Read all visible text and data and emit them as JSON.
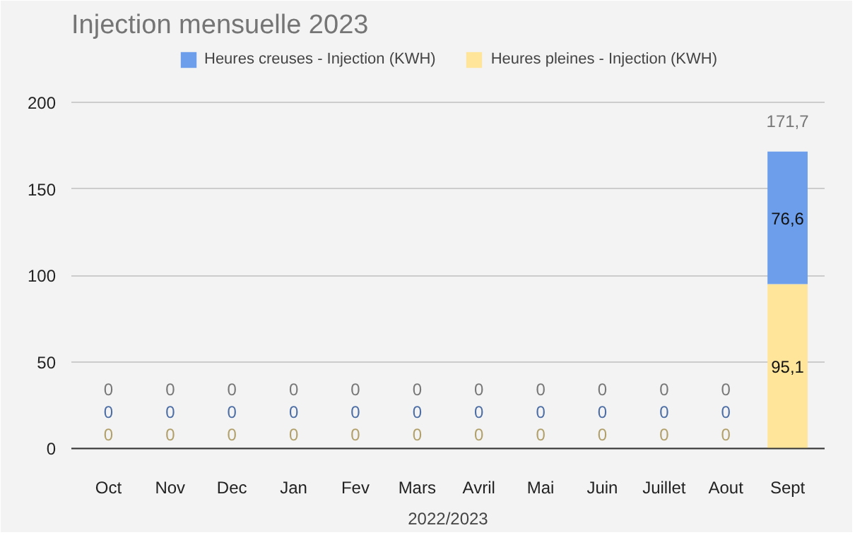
{
  "chart_data": {
    "type": "bar",
    "title": "Injection mensuelle 2023",
    "xlabel": "2022/2023",
    "categories": [
      "Oct",
      "Nov",
      "Dec",
      "Jan",
      "Fev",
      "Mars",
      "Avril",
      "Mai",
      "Juin",
      "Juillet",
      "Aout",
      "Sept"
    ],
    "stacked": true,
    "series": [
      {
        "name": "Heures pleines - Injection (KWH)",
        "color": "#ffe599",
        "values": [
          0,
          0,
          0,
          0,
          0,
          0,
          0,
          0,
          0,
          0,
          0,
          95.1
        ],
        "value_labels": [
          "0",
          "0",
          "0",
          "0",
          "0",
          "0",
          "0",
          "0",
          "0",
          "0",
          "0",
          "95,1"
        ]
      },
      {
        "name": "Heures creuses - Injection (KWH)",
        "color": "#6d9eeb",
        "values": [
          0,
          0,
          0,
          0,
          0,
          0,
          0,
          0,
          0,
          0,
          0,
          76.6
        ],
        "value_labels": [
          "0",
          "0",
          "0",
          "0",
          "0",
          "0",
          "0",
          "0",
          "0",
          "0",
          "0",
          "76,6"
        ]
      }
    ],
    "totals": [
      "0",
      "0",
      "0",
      "0",
      "0",
      "0",
      "0",
      "0",
      "0",
      "0",
      "0",
      "171,7"
    ],
    "ylim": [
      -8,
      232
    ],
    "yticks": [
      0,
      50,
      100,
      150,
      200
    ],
    "grid": "y",
    "legend": "top"
  }
}
